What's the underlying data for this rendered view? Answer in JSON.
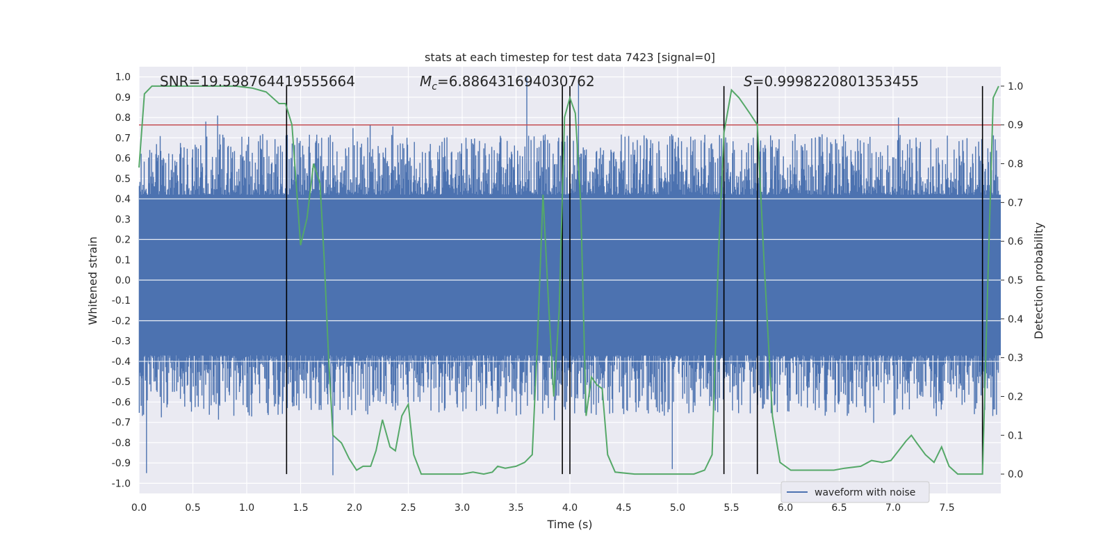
{
  "chart_data": {
    "type": "line",
    "title": "stats at each timestep for test data 7423 [signal=0]",
    "xlabel": "Time (s)",
    "ylabel_left": "Whitened strain",
    "ylabel_right": "Detection probability",
    "xlim": [
      0.0,
      8.0
    ],
    "ylim_left": [
      -1.05,
      1.05
    ],
    "ylim_right": [
      -0.05,
      1.05
    ],
    "x_ticks": [
      "0.0",
      "0.5",
      "1.0",
      "1.5",
      "2.0",
      "2.5",
      "3.0",
      "3.5",
      "4.0",
      "4.5",
      "5.0",
      "5.5",
      "6.0",
      "6.5",
      "7.0",
      "7.5"
    ],
    "y_ticks_left": [
      "-1.0",
      "-0.9",
      "-0.8",
      "-0.7",
      "-0.6",
      "-0.5",
      "-0.4",
      "-0.3",
      "-0.2",
      "-0.1",
      "0.0",
      "0.1",
      "0.2",
      "0.3",
      "0.4",
      "0.5",
      "0.6",
      "0.7",
      "0.8",
      "0.9",
      "1.0"
    ],
    "y_ticks_right": [
      "0.0",
      "0.1",
      "0.2",
      "0.3",
      "0.4",
      "0.5",
      "0.6",
      "0.7",
      "0.8",
      "0.9",
      "1.0"
    ],
    "annotations": {
      "snr": "SNR=19.598764419555664",
      "mc_symbol": "M",
      "mc_subscript": "c",
      "mc_value": "=6.886431694030762",
      "s_symbol": "S",
      "s_value": "=0.9998220801353455"
    },
    "threshold": 0.9,
    "vertical_lines_s": [
      1.37,
      3.93,
      4.0,
      5.43,
      5.74,
      7.83
    ],
    "legend": [
      {
        "label": "waveform with noise",
        "color": "#4c72b0"
      }
    ],
    "series": [
      {
        "name": "waveform with noise",
        "color": "#4c72b0",
        "kind": "noise-envelope",
        "core_range": [
          -0.37,
          0.42
        ],
        "typical_spikes": [
          -0.55,
          0.6
        ],
        "peak_values": [
          {
            "x": 0.07,
            "y": -0.95
          },
          {
            "x": 0.62,
            "y": 0.78
          },
          {
            "x": 0.73,
            "y": 0.81
          },
          {
            "x": 1.8,
            "y": -0.96
          },
          {
            "x": 3.6,
            "y": 1.0
          },
          {
            "x": 4.08,
            "y": 0.98
          },
          {
            "x": 4.95,
            "y": -0.93
          },
          {
            "x": 7.05,
            "y": 0.8
          }
        ]
      },
      {
        "name": "",
        "color": "#55a868",
        "axis": "right",
        "x": [
          0.0,
          0.05,
          0.12,
          0.3,
          0.5,
          0.7,
          0.9,
          1.05,
          1.18,
          1.3,
          1.36,
          1.42,
          1.5,
          1.56,
          1.62,
          1.68,
          1.72,
          1.76,
          1.8,
          1.88,
          1.95,
          2.02,
          2.08,
          2.15,
          2.2,
          2.26,
          2.33,
          2.38,
          2.44,
          2.5,
          2.55,
          2.62,
          2.8,
          3.0,
          3.1,
          3.2,
          3.28,
          3.33,
          3.4,
          3.5,
          3.58,
          3.65,
          3.7,
          3.75,
          3.8,
          3.85,
          3.9,
          3.95,
          4.0,
          4.05,
          4.1,
          4.15,
          4.2,
          4.25,
          4.3,
          4.35,
          4.42,
          4.6,
          4.8,
          5.0,
          5.15,
          5.25,
          5.32,
          5.38,
          5.43,
          5.5,
          5.57,
          5.62,
          5.67,
          5.74,
          5.8,
          5.88,
          5.95,
          6.05,
          6.2,
          6.45,
          6.55,
          6.7,
          6.8,
          6.9,
          6.98,
          7.05,
          7.12,
          7.17,
          7.22,
          7.3,
          7.38,
          7.45,
          7.52,
          7.6,
          7.75,
          7.83,
          7.88,
          7.93,
          7.98
        ],
        "y": [
          0.79,
          0.98,
          1.0,
          1.0,
          1.0,
          1.0,
          1.0,
          0.995,
          0.985,
          0.955,
          0.955,
          0.9,
          0.59,
          0.66,
          0.8,
          0.75,
          0.55,
          0.3,
          0.1,
          0.08,
          0.04,
          0.01,
          0.02,
          0.02,
          0.06,
          0.14,
          0.07,
          0.06,
          0.15,
          0.18,
          0.05,
          0.0,
          0.0,
          0.0,
          0.005,
          0.0,
          0.005,
          0.02,
          0.015,
          0.02,
          0.03,
          0.05,
          0.35,
          0.72,
          0.45,
          0.2,
          0.42,
          0.92,
          0.97,
          0.93,
          0.7,
          0.15,
          0.25,
          0.23,
          0.22,
          0.05,
          0.005,
          0.0,
          0.0,
          0.0,
          0.0,
          0.01,
          0.05,
          0.57,
          0.88,
          0.99,
          0.97,
          0.95,
          0.93,
          0.9,
          0.56,
          0.15,
          0.03,
          0.01,
          0.01,
          0.01,
          0.015,
          0.02,
          0.035,
          0.03,
          0.035,
          0.06,
          0.085,
          0.1,
          0.08,
          0.05,
          0.03,
          0.07,
          0.02,
          0.0,
          0.0,
          0.0,
          0.5,
          0.97,
          1.0
        ]
      }
    ]
  }
}
